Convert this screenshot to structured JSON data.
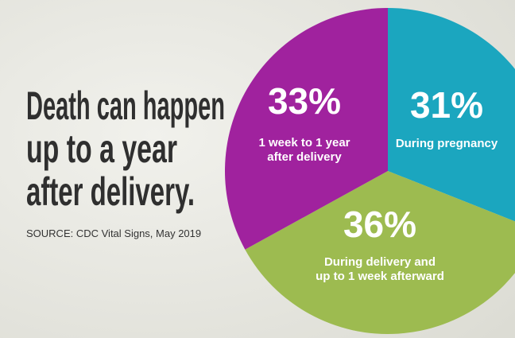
{
  "chart_data": {
    "type": "pie",
    "title": [
      "Death can happen",
      "up to a year",
      "after delivery."
    ],
    "source": "SOURCE: CDC Vital Signs, May 2019",
    "categories": [
      [
        "During pregnancy"
      ],
      [
        "During delivery and",
        "up to 1 week afterward"
      ],
      [
        "1 week to 1 year",
        "after delivery"
      ]
    ],
    "values": [
      31,
      36,
      33
    ],
    "value_labels": [
      "31%",
      "36%",
      "33%"
    ],
    "colors": [
      "#1ba6bf",
      "#9dbb50",
      "#a0229e"
    ]
  }
}
